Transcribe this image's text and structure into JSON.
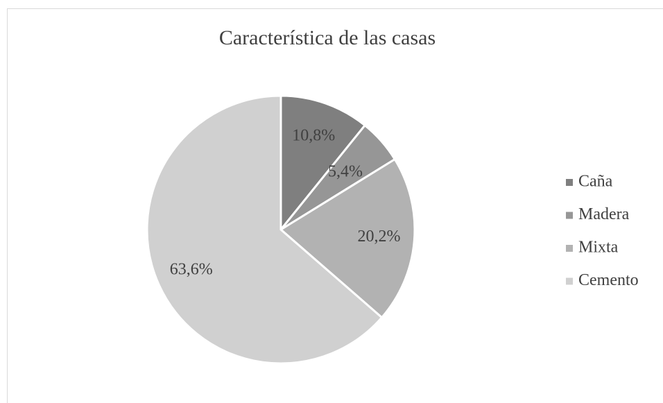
{
  "chart_data": {
    "type": "pie",
    "title": "Característica de las casas",
    "categories": [
      "Caña",
      "Madera",
      "Mixta",
      "Cemento"
    ],
    "values": [
      10.8,
      5.4,
      20.2,
      63.6
    ],
    "value_labels": [
      "10,8%",
      "5,4%",
      "20,2%",
      "63,6%"
    ],
    "colors": [
      "#7f7f7f",
      "#969696",
      "#b2b2b2",
      "#d0d0d0"
    ],
    "legend": "right"
  }
}
